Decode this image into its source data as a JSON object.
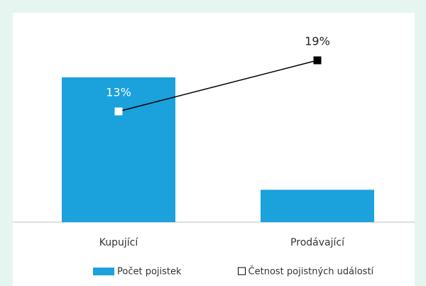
{
  "chart_data": {
    "type": "bar",
    "categories": [
      "Kupující",
      "Prodávající"
    ],
    "ylim": [
      0,
      25
    ],
    "series": [
      {
        "name": "Počet pojistek",
        "type": "bar",
        "color": "#1ba1dc",
        "values": [
          17,
          3.8
        ]
      },
      {
        "name": "Četnost pojistných událostí",
        "type": "line",
        "color": "#000000",
        "marker_colors": [
          "#ffffff",
          "#000000"
        ],
        "values": [
          13,
          19
        ],
        "value_labels": [
          "13%",
          "19%"
        ]
      }
    ]
  }
}
